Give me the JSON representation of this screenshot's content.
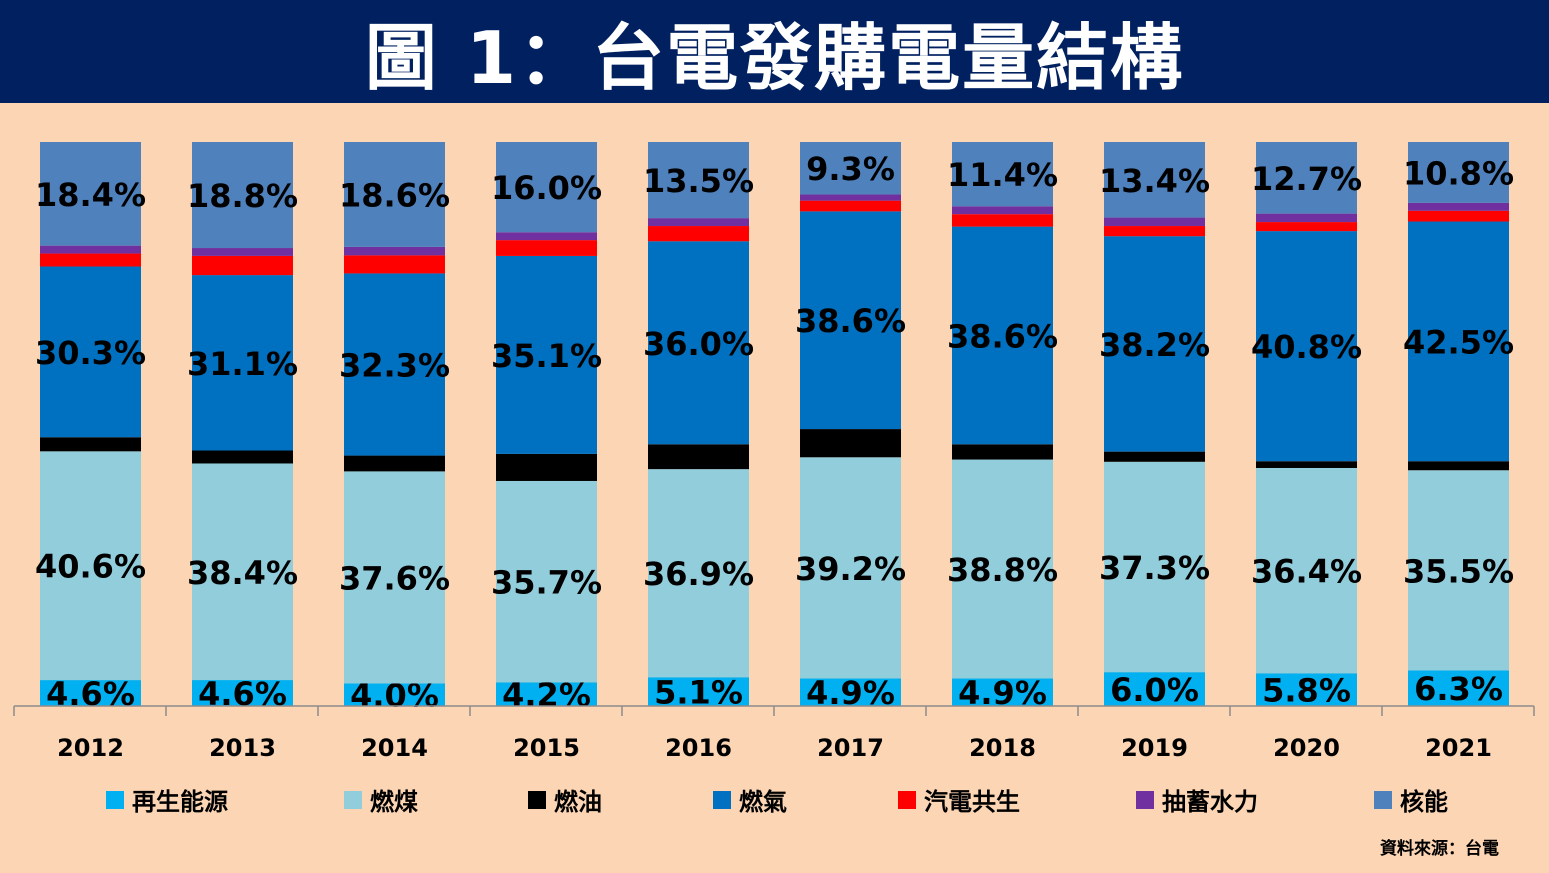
{
  "title": "圖 1：台電發購電量結構",
  "source": "資料來源：台電",
  "chart_data": {
    "type": "bar",
    "stacked": true,
    "title": "圖 1：台電發購電量結構",
    "categories": [
      "2012",
      "2013",
      "2014",
      "2015",
      "2016",
      "2017",
      "2018",
      "2019",
      "2020",
      "2021"
    ],
    "ylim": [
      0,
      100
    ],
    "unit": "%",
    "grid": false,
    "legend_position": "bottom",
    "series": [
      {
        "name": "再生能源",
        "color": "#00B0F0",
        "labeled": true,
        "values": [
          4.6,
          4.6,
          4.0,
          4.2,
          5.1,
          4.9,
          4.9,
          6.0,
          5.8,
          6.3
        ]
      },
      {
        "name": "燃煤",
        "color": "#92CDDC",
        "labeled": true,
        "values": [
          40.6,
          38.4,
          37.6,
          35.7,
          36.9,
          39.2,
          38.8,
          37.3,
          36.4,
          35.5
        ]
      },
      {
        "name": "燃油",
        "color": "#000000",
        "labeled": false,
        "values": [
          2.5,
          2.3,
          2.8,
          4.8,
          4.4,
          5.0,
          2.7,
          1.8,
          1.2,
          1.6
        ]
      },
      {
        "name": "燃氣",
        "color": "#0070C0",
        "labeled": true,
        "values": [
          30.3,
          31.1,
          32.3,
          35.1,
          36.0,
          38.6,
          38.6,
          38.2,
          40.8,
          42.5
        ]
      },
      {
        "name": "汽電共生",
        "color": "#FF0000",
        "labeled": false,
        "values": [
          2.3,
          3.4,
          3.2,
          2.8,
          2.7,
          1.9,
          2.2,
          1.8,
          1.6,
          1.9
        ]
      },
      {
        "name": "抽蓄水力",
        "color": "#7030A0",
        "labeled": false,
        "values": [
          1.4,
          1.4,
          1.5,
          1.4,
          1.4,
          1.1,
          1.4,
          1.5,
          1.5,
          1.4
        ]
      },
      {
        "name": "核能",
        "color": "#4F81BD",
        "labeled": true,
        "values": [
          18.4,
          18.8,
          18.6,
          16.0,
          13.5,
          9.3,
          11.4,
          13.4,
          12.7,
          10.8
        ]
      }
    ]
  }
}
